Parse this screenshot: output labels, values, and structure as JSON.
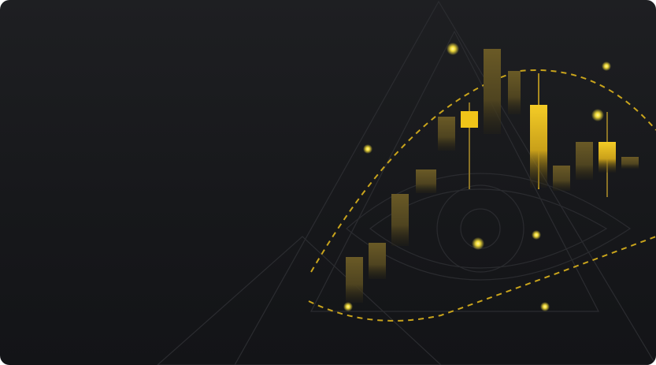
{
  "colors": {
    "background_top": "#1e1f22",
    "background_bottom": "#131417",
    "candle_accent": "#f0c419",
    "candle_muted": "#5a4c22",
    "dashed_curve": "#c9a41c",
    "glow_dot": "#f5e14a",
    "outline_lines": "#2a2b2f"
  },
  "illustration": {
    "icons": [
      "candlestick-icon",
      "eye-icon",
      "triangle-icon",
      "sparkle-dot-icon"
    ]
  }
}
